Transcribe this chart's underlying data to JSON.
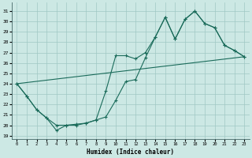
{
  "xlabel": "Humidex (Indice chaleur)",
  "bg_color": "#cce8e4",
  "grid_color": "#a0c8c4",
  "line_color": "#1a6b5a",
  "xlim": [
    -0.5,
    23.5
  ],
  "ylim": [
    18.7,
    31.8
  ],
  "xticks": [
    0,
    1,
    2,
    3,
    4,
    5,
    6,
    7,
    8,
    9,
    10,
    11,
    12,
    13,
    14,
    15,
    16,
    17,
    18,
    19,
    20,
    21,
    22,
    23
  ],
  "yticks": [
    19,
    20,
    21,
    22,
    23,
    24,
    25,
    26,
    27,
    28,
    29,
    30,
    31
  ],
  "line1_x": [
    0,
    1,
    2,
    3,
    4,
    5,
    6,
    7,
    8,
    9,
    10,
    11,
    12,
    13,
    14,
    15,
    16,
    17,
    18,
    19,
    20,
    21,
    22,
    23
  ],
  "line1_y": [
    24.0,
    22.8,
    21.5,
    20.7,
    19.5,
    20.0,
    20.0,
    20.2,
    20.5,
    23.3,
    26.7,
    26.7,
    26.4,
    27.0,
    28.5,
    30.4,
    28.3,
    30.2,
    31.0,
    29.8,
    29.4,
    27.7,
    27.2,
    26.6
  ],
  "line2_x": [
    0,
    1,
    2,
    3,
    4,
    5,
    6,
    7,
    8,
    9,
    10,
    11,
    12,
    13,
    14,
    15,
    16,
    17,
    18,
    19,
    20,
    21,
    22,
    23
  ],
  "line2_y": [
    24.0,
    22.8,
    21.5,
    20.7,
    20.0,
    20.0,
    20.1,
    20.2,
    20.5,
    20.8,
    22.4,
    24.2,
    24.4,
    26.5,
    28.5,
    30.4,
    28.3,
    30.2,
    31.0,
    29.8,
    29.4,
    27.7,
    27.2,
    26.6
  ],
  "line3_x": [
    0,
    23
  ],
  "line3_y": [
    24.0,
    26.6
  ]
}
